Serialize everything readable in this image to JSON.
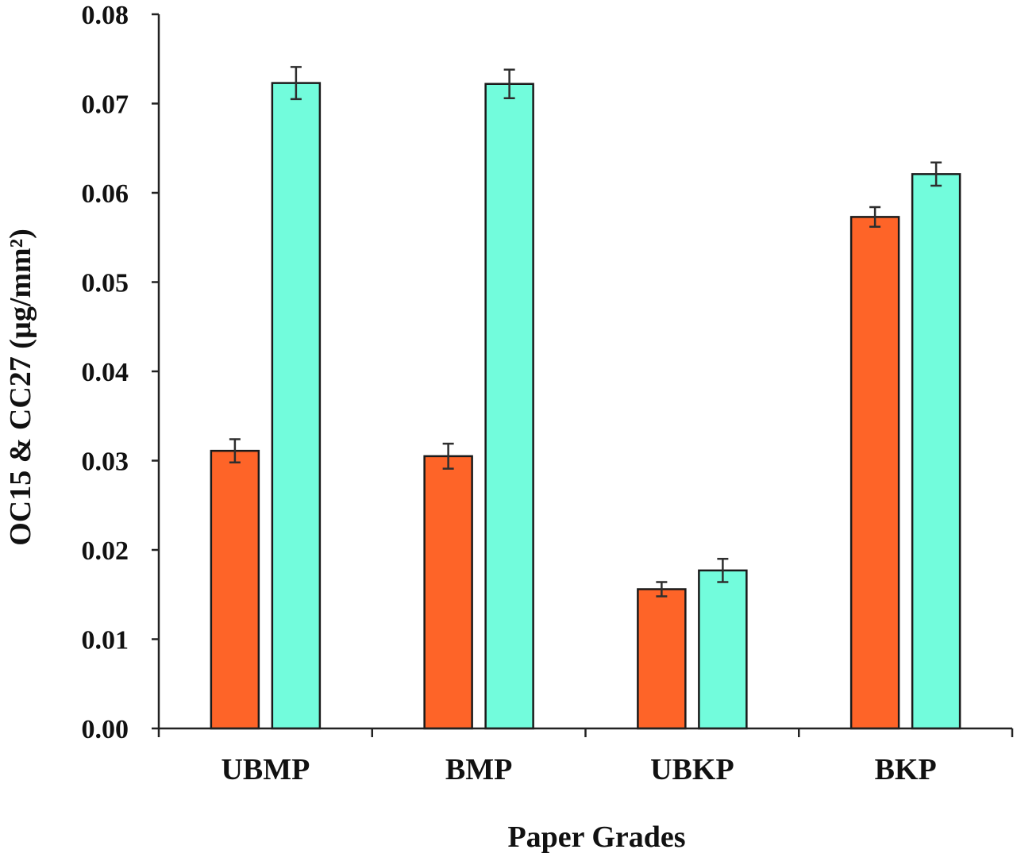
{
  "chart_data": {
    "type": "bar",
    "categories": [
      "UBMP",
      "BMP",
      "UBKP",
      "BKP"
    ],
    "series": [
      {
        "values": [
          0.0311,
          0.0305,
          0.0156,
          0.0573
        ],
        "errors": [
          0.0013,
          0.0014,
          0.0008,
          0.0011
        ],
        "color": "#fe6428"
      },
      {
        "values": [
          0.0723,
          0.0722,
          0.0177,
          0.0621
        ],
        "errors": [
          0.0018,
          0.0016,
          0.0013,
          0.0013
        ],
        "color": "#72fcdc"
      }
    ],
    "xlabel": "Paper Grades",
    "ylabel": "OC15 & CC27 (µg/mm²)",
    "ylim": [
      0,
      0.08
    ],
    "yticks": [
      "0.00",
      "0.01",
      "0.02",
      "0.03",
      "0.04",
      "0.05",
      "0.06",
      "0.07",
      "0.08"
    ],
    "grid": false,
    "legend": "none"
  }
}
